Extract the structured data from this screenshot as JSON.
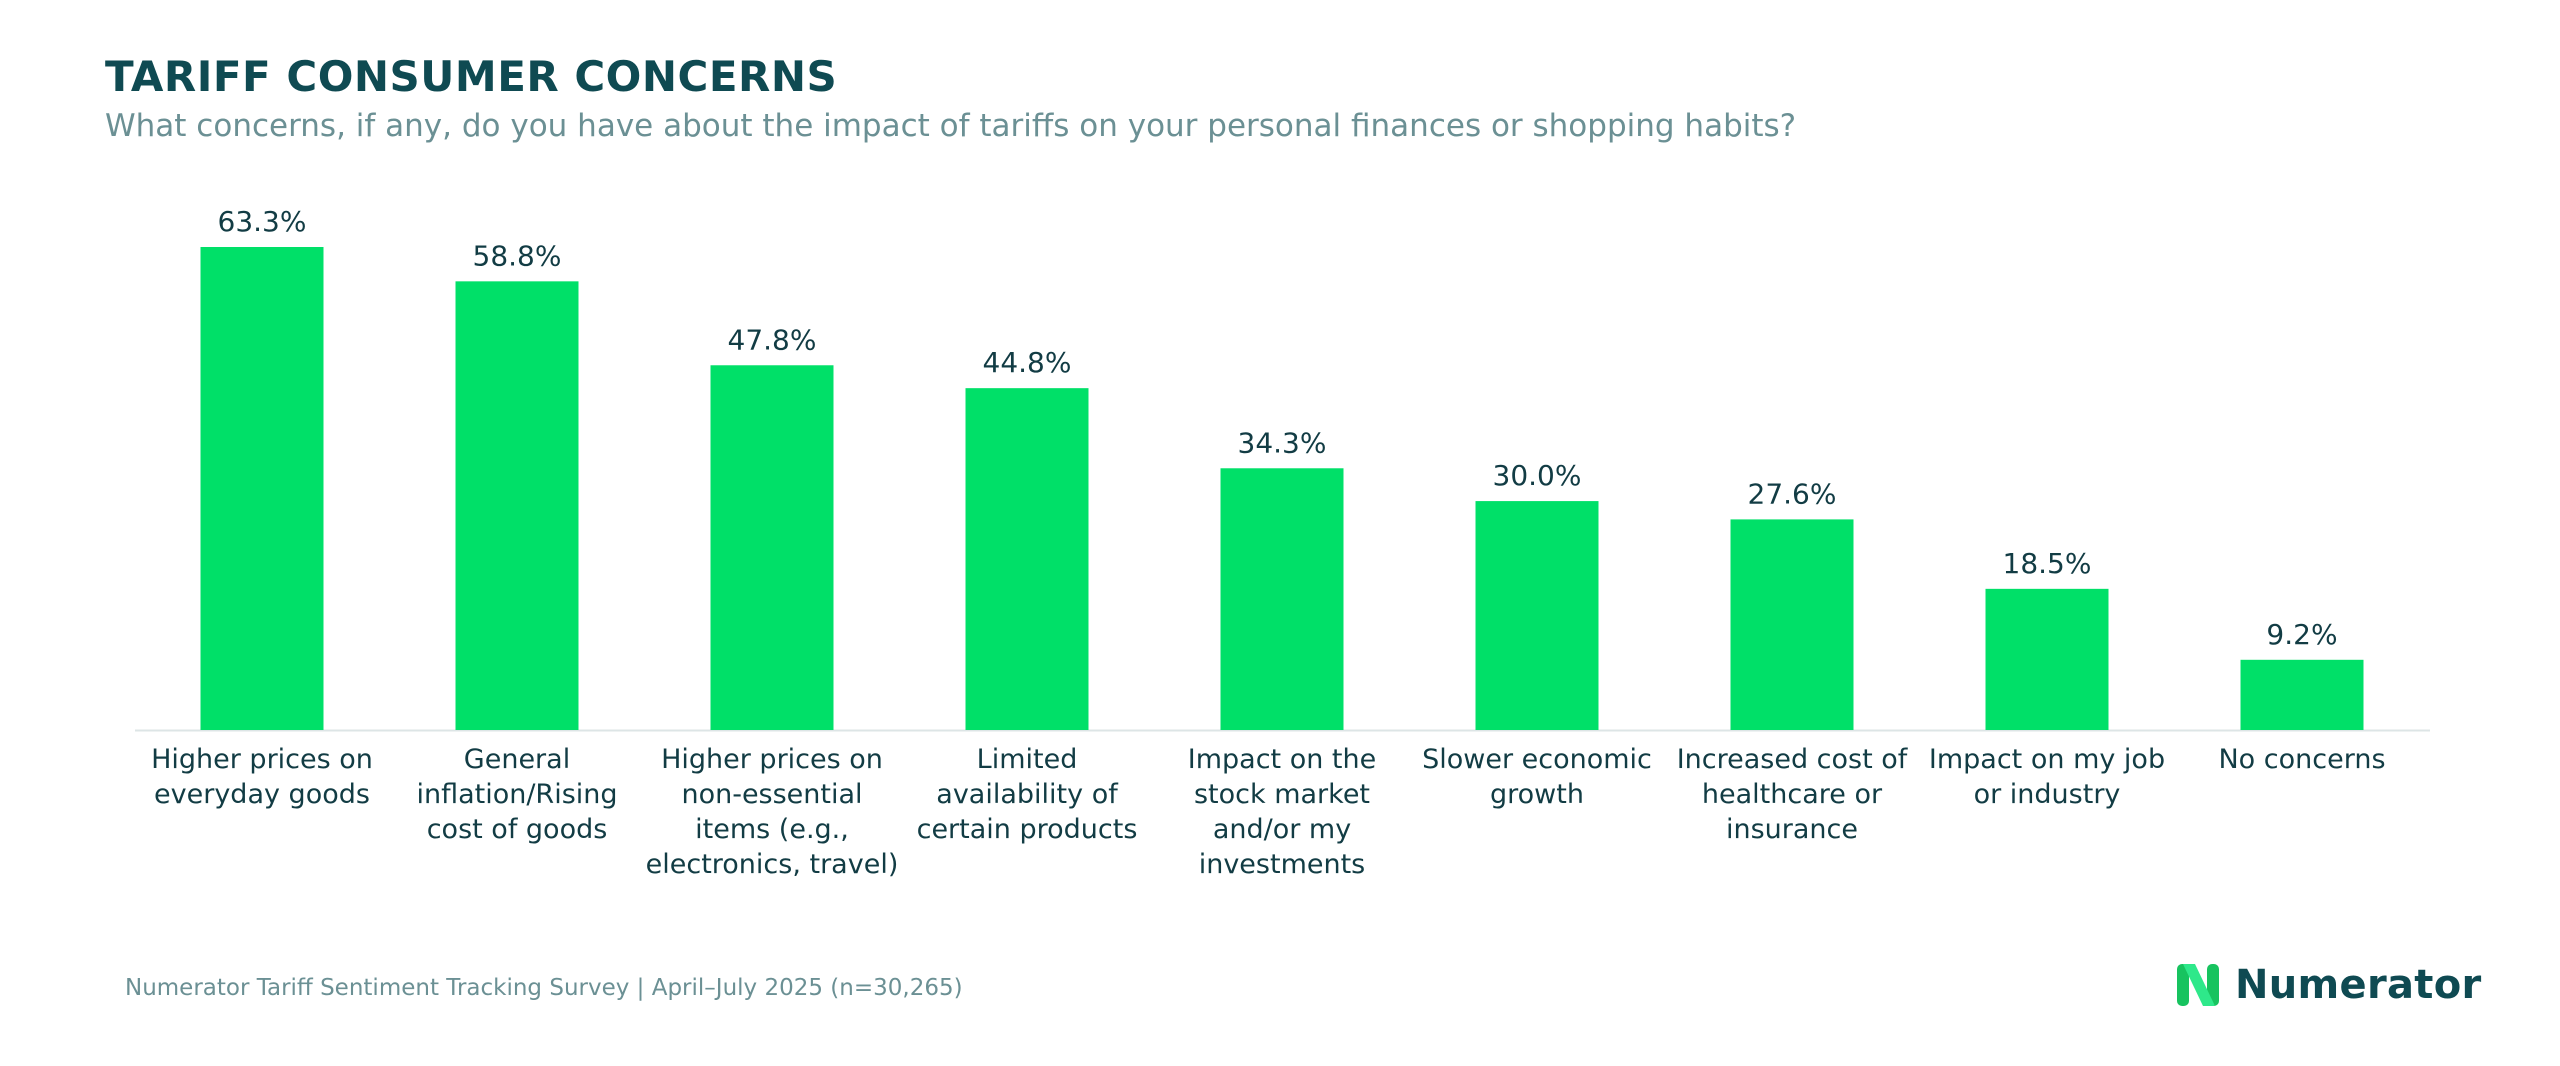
{
  "header": {
    "title": "TARIFF CONSUMER CONCERNS",
    "subtitle": "What concerns, if any, do you have about the impact of tariffs on your personal finances or shopping habits?"
  },
  "chart_data": {
    "type": "bar",
    "title": "TARIFF CONSUMER CONCERNS",
    "subtitle": "What concerns, if any, do you have about the impact of tariffs on your personal finances or shopping habits?",
    "categories": [
      [
        "Higher prices on",
        "everyday goods"
      ],
      [
        "General",
        "inflation/Rising",
        "cost of goods"
      ],
      [
        "Higher prices on",
        "non-essential",
        "items (e.g.,",
        "electronics, travel)"
      ],
      [
        "Limited",
        "availability of",
        "certain products"
      ],
      [
        "Impact on the",
        "stock market",
        "and/or my",
        "investments"
      ],
      [
        "Slower economic",
        "growth"
      ],
      [
        "Increased cost of",
        "healthcare or",
        "insurance"
      ],
      [
        "Impact on my job",
        "or industry"
      ],
      [
        "No concerns"
      ]
    ],
    "values": [
      63.3,
      58.8,
      47.8,
      44.8,
      34.3,
      30.0,
      27.6,
      18.5,
      9.2
    ],
    "data_labels": [
      "63.3%",
      "58.8%",
      "47.8%",
      "44.8%",
      "34.3%",
      "30.0%",
      "27.6%",
      "18.5%",
      "9.2%"
    ],
    "xlabel": "",
    "ylabel": "",
    "ylim": [
      0,
      63.3
    ],
    "grid": false,
    "legend": "none",
    "colors": {
      "bar": "#00e068",
      "axis": "#dde5e6"
    }
  },
  "footer": {
    "source": "Numerator Tariff Sentiment Tracking Survey | April–July 2025 (n=30,265)"
  },
  "brand": {
    "name": "Numerator",
    "logo_icon": "numerator-n-icon",
    "colors": {
      "logo_light": "#2ee88a",
      "logo_dark": "#17c35f",
      "text": "#0f4a52"
    }
  }
}
